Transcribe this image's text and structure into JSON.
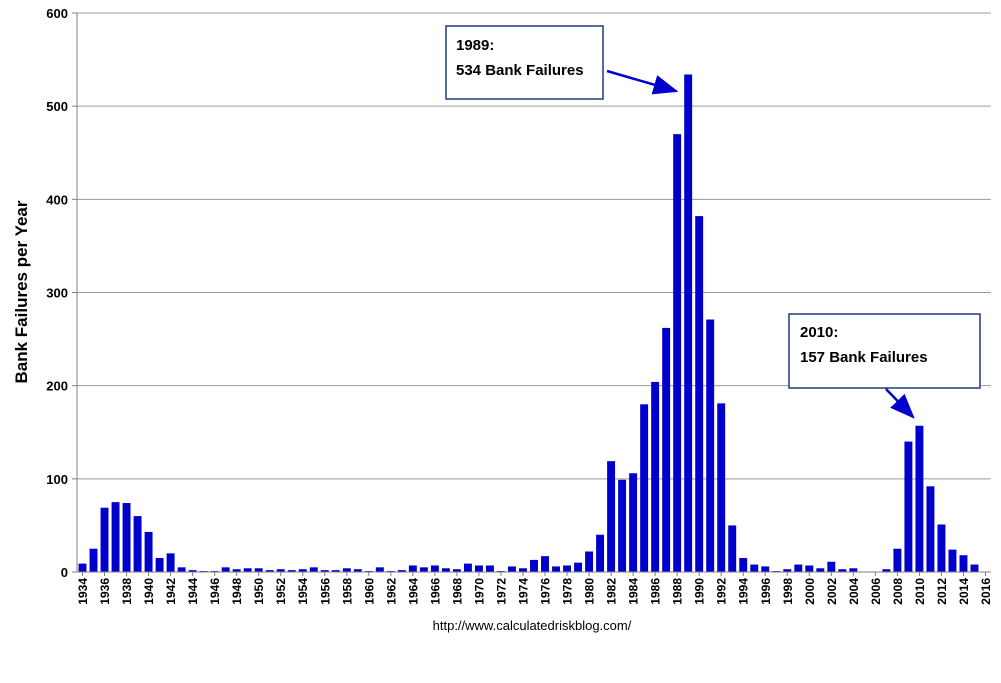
{
  "chart_data": {
    "type": "bar",
    "ylabel": "Bank Failures per Year",
    "source": "http://www.calculatedriskblog.com/",
    "ylim": [
      0,
      600
    ],
    "y_ticks": [
      "0",
      "100",
      "200",
      "300",
      "400",
      "500",
      "600"
    ],
    "grid": true,
    "bar_color": "#0000cc",
    "x": [
      1934,
      1935,
      1936,
      1937,
      1938,
      1939,
      1940,
      1941,
      1942,
      1943,
      1944,
      1945,
      1946,
      1947,
      1948,
      1949,
      1950,
      1951,
      1952,
      1953,
      1954,
      1955,
      1956,
      1957,
      1958,
      1959,
      1960,
      1961,
      1962,
      1963,
      1964,
      1965,
      1966,
      1967,
      1968,
      1969,
      1970,
      1971,
      1972,
      1973,
      1974,
      1975,
      1976,
      1977,
      1978,
      1979,
      1980,
      1981,
      1982,
      1983,
      1984,
      1985,
      1986,
      1987,
      1988,
      1989,
      1990,
      1991,
      1992,
      1993,
      1994,
      1995,
      1996,
      1997,
      1998,
      1999,
      2000,
      2001,
      2002,
      2003,
      2004,
      2005,
      2006,
      2007,
      2008,
      2009,
      2010,
      2011,
      2012,
      2013,
      2014,
      2015,
      2016
    ],
    "values": [
      9,
      25,
      69,
      75,
      74,
      60,
      43,
      15,
      20,
      5,
      2,
      1,
      1,
      5,
      3,
      4,
      4,
      2,
      3,
      2,
      3,
      5,
      2,
      2,
      4,
      3,
      1,
      5,
      1,
      2,
      7,
      5,
      7,
      4,
      3,
      9,
      7,
      7,
      1,
      6,
      4,
      13,
      17,
      6,
      7,
      10,
      22,
      40,
      119,
      99,
      106,
      180,
      204,
      262,
      470,
      534,
      382,
      271,
      181,
      50,
      15,
      8,
      6,
      1,
      3,
      8,
      7,
      4,
      11,
      3,
      4,
      0,
      0,
      3,
      25,
      140,
      157,
      92,
      51,
      24,
      18,
      8,
      0
    ],
    "x_tick_labels": [
      "1934",
      "1936",
      "1938",
      "1940",
      "1942",
      "1944",
      "1946",
      "1948",
      "1950",
      "1952",
      "1954",
      "1956",
      "1958",
      "1960",
      "1962",
      "1964",
      "1966",
      "1968",
      "1970",
      "1972",
      "1974",
      "1976",
      "1978",
      "1980",
      "1982",
      "1984",
      "1986",
      "1988",
      "1990",
      "1992",
      "1994",
      "1996",
      "1998",
      "2000",
      "2002",
      "2004",
      "2006",
      "2008",
      "2010",
      "2012",
      "2014",
      "2016"
    ],
    "annotations": [
      {
        "line1": "1989:",
        "line2": "534 Bank Failures",
        "points_to": 1989
      },
      {
        "line1": "2010:",
        "line2": "157 Bank Failures",
        "points_to": 2010
      }
    ]
  }
}
